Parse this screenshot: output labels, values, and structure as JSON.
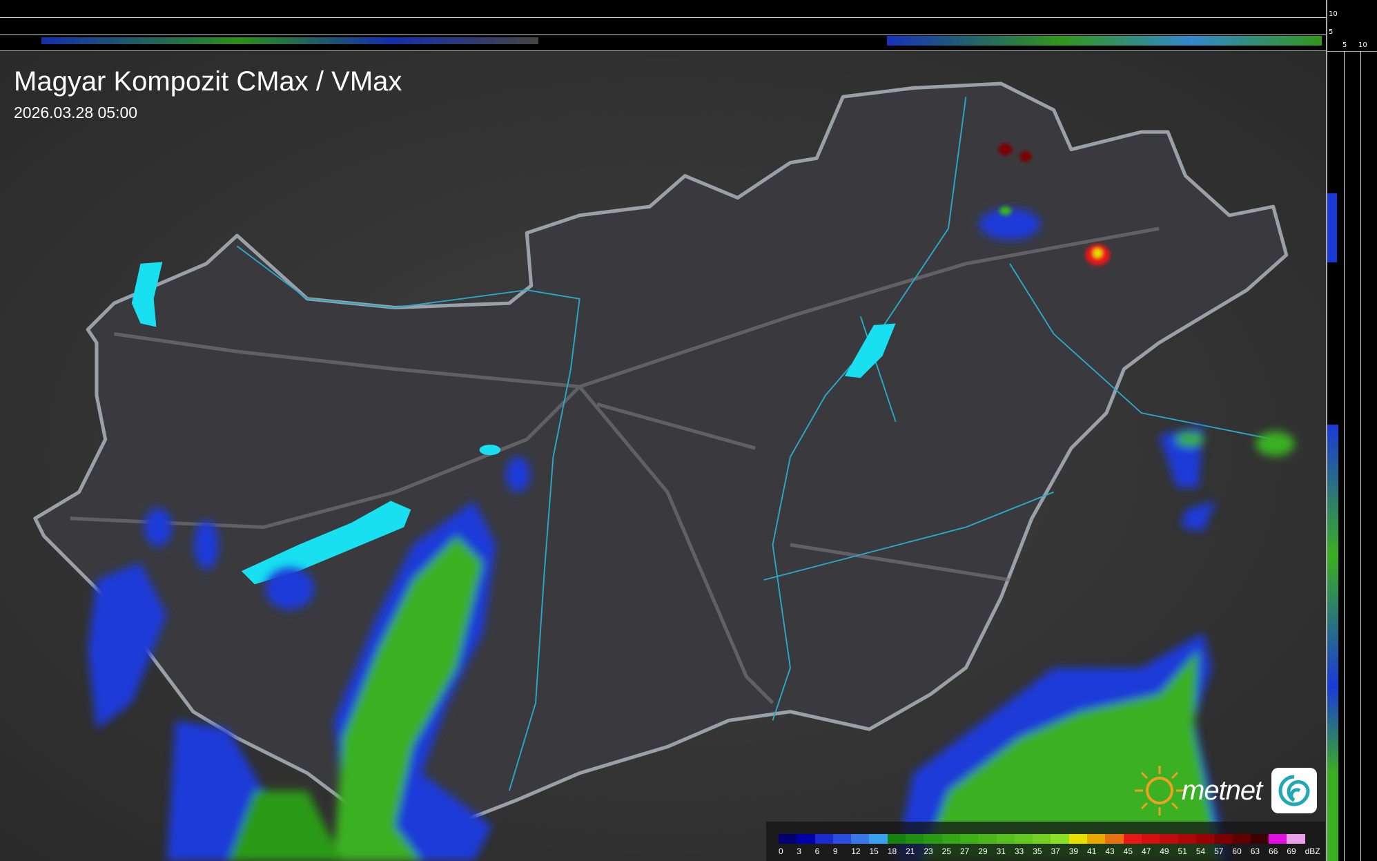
{
  "header": {
    "title": "Magyar Kompozit CMax / VMax",
    "timestamp": "2026.03.28 05:00"
  },
  "profile_axes": {
    "top_ticks": [
      "10",
      "5"
    ],
    "side_ticks": [
      "5",
      "10"
    ]
  },
  "legend": {
    "unit": "dBZ",
    "labels": [
      "0",
      "3",
      "6",
      "9",
      "12",
      "15",
      "18",
      "21",
      "23",
      "25",
      "27",
      "29",
      "31",
      "33",
      "35",
      "37",
      "39",
      "41",
      "43",
      "45",
      "47",
      "49",
      "51",
      "54",
      "57",
      "60",
      "63",
      "66",
      "69"
    ],
    "colors": [
      "#000070",
      "#0000a8",
      "#1a2bd0",
      "#2a4de0",
      "#3a78e8",
      "#3aa0f0",
      "#168010",
      "#1f8f12",
      "#2a9a14",
      "#34a516",
      "#3eb018",
      "#4ab81c",
      "#56c01e",
      "#62c820",
      "#74d022",
      "#8ae024",
      "#e8e000",
      "#e8a800",
      "#e87010",
      "#e81818",
      "#d41010",
      "#c00c0c",
      "#ac0808",
      "#980404",
      "#7c0000",
      "#600000",
      "#3c0000",
      "#e010e0",
      "#e8a0e8",
      "#90e8e8"
    ]
  },
  "logo": {
    "brand": "metnet",
    "accent": "#f0a020"
  },
  "map": {
    "lake_color": "#18e0f0",
    "border_color": "#9aa0a8",
    "river_color": "#2aa8c8"
  }
}
